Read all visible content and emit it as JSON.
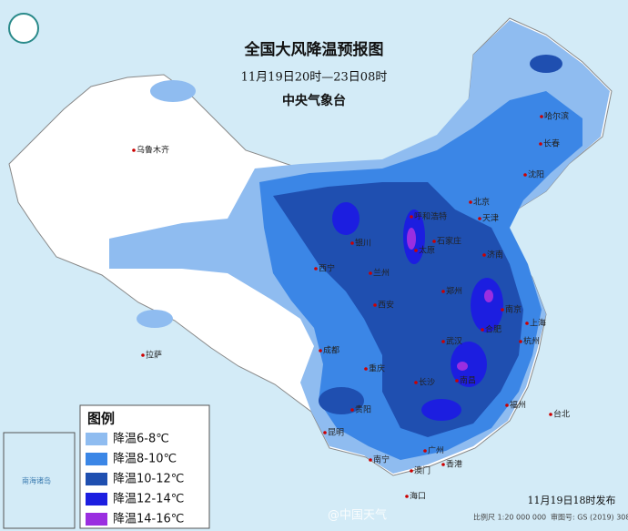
{
  "header": {
    "title": "全国大风降温预报图",
    "period": "11月19日20时—23日08时",
    "issuer": "中央气象台"
  },
  "legend": {
    "title": "图例",
    "items": [
      {
        "label": "降温6-8℃",
        "color": "#8fbcf0"
      },
      {
        "label": "降温8-10℃",
        "color": "#3b86e6"
      },
      {
        "label": "降温10-12℃",
        "color": "#1f4fb0"
      },
      {
        "label": "降温12-14℃",
        "color": "#1c1ee0"
      },
      {
        "label": "降温14-16℃",
        "color": "#9a2ee0"
      }
    ]
  },
  "cities": [
    "乌鲁木齐",
    "哈尔滨",
    "长春",
    "沈阳",
    "北京",
    "天津",
    "呼和浩特",
    "石家庄",
    "太原",
    "银川",
    "兰州",
    "西宁",
    "西安",
    "郑州",
    "济南",
    "南京",
    "合肥",
    "上海",
    "杭州",
    "武汉",
    "成都",
    "重庆",
    "长沙",
    "南昌",
    "福州",
    "贵阳",
    "昆明",
    "南宁",
    "广州",
    "香港",
    "澳门",
    "台北",
    "海口",
    "拉萨"
  ],
  "inset": "南海诸岛",
  "footer": {
    "issued": "11月19日18时发布",
    "scale": "比例尺 1:20 000 000",
    "approval": "审图号: GS (2019) 3082号"
  },
  "watermark": "@中国天气"
}
